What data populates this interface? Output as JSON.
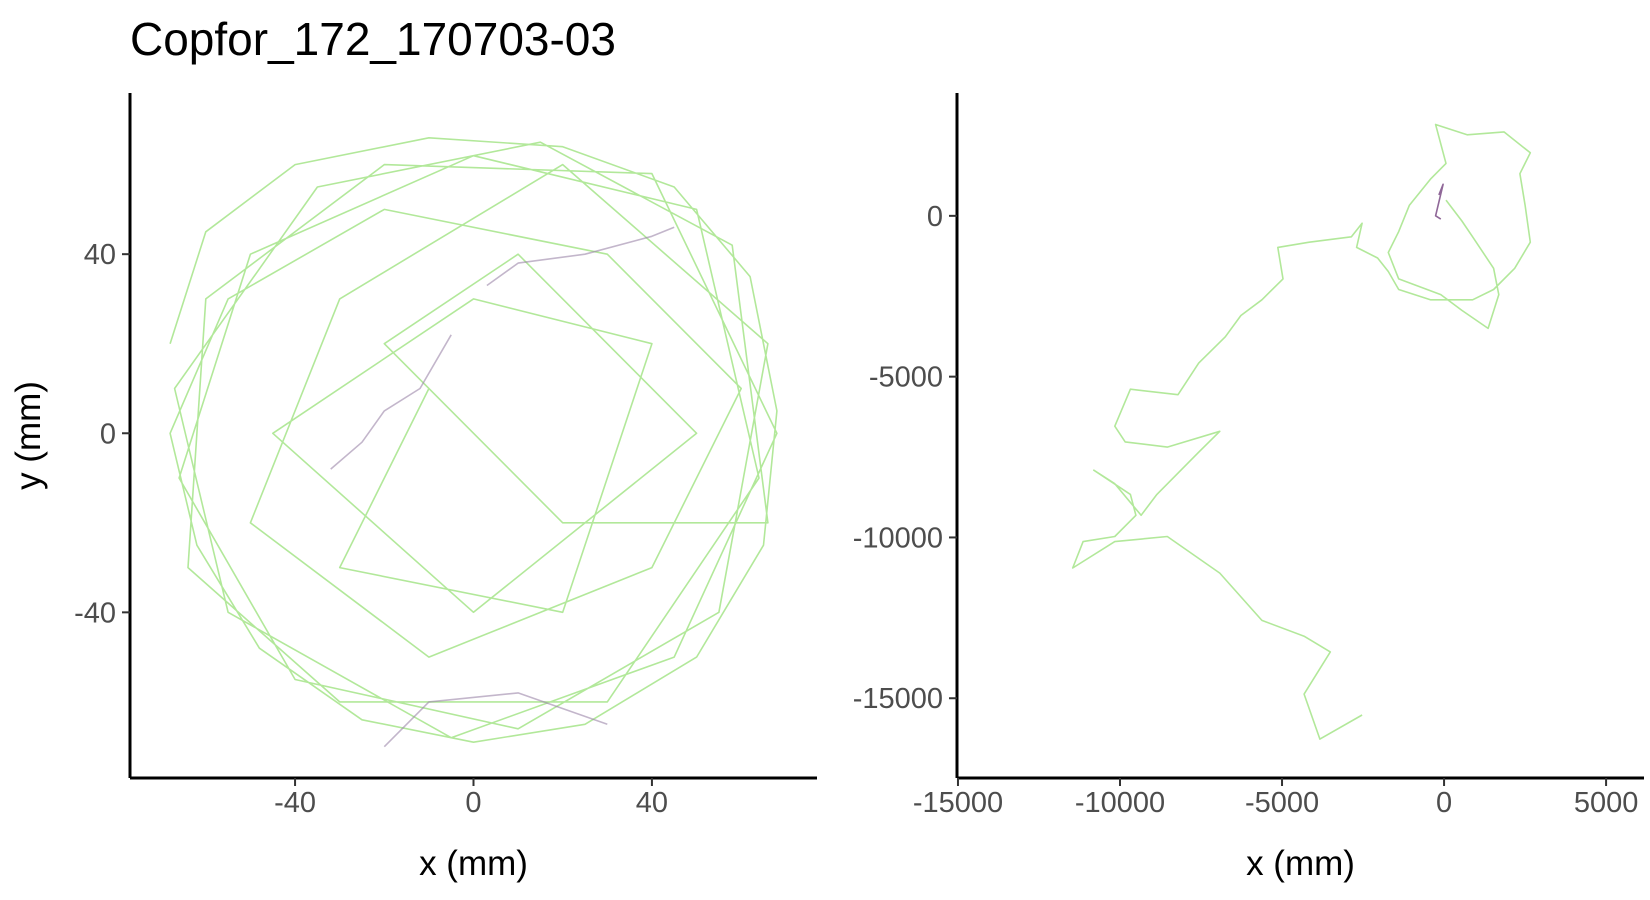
{
  "chart_data": [
    {
      "type": "line",
      "title": "Copfor_172_170703-03",
      "x_label": "x (mm)",
      "y_label": "y (mm)",
      "xlim": [
        -77,
        77
      ],
      "ylim": [
        -77,
        76
      ],
      "xticks": [
        -40,
        0,
        40
      ],
      "yticks": [
        -40,
        0,
        40
      ],
      "series": [
        {
          "color": "#7ed957",
          "x": [
            -68,
            -60,
            -40,
            -10,
            20,
            45,
            62,
            68,
            65,
            50,
            25,
            0,
            -25,
            -48,
            -62,
            -68,
            -55,
            -20,
            30,
            60,
            40,
            -10,
            -50,
            -30,
            20,
            66,
            55,
            10,
            -40,
            -66,
            -50,
            0,
            50,
            64,
            30,
            -30,
            -64,
            -60,
            -20,
            40,
            68,
            45,
            -5,
            -55,
            -67,
            -35,
            15,
            58,
            66,
            20,
            -20,
            10,
            50,
            0,
            -45,
            0,
            40,
            20,
            -30,
            -10
          ],
          "y": [
            20,
            45,
            60,
            66,
            64,
            55,
            35,
            5,
            -25,
            -50,
            -65,
            -69,
            -64,
            -48,
            -25,
            0,
            30,
            50,
            40,
            10,
            -30,
            -50,
            -20,
            30,
            60,
            20,
            -40,
            -66,
            -55,
            -10,
            40,
            62,
            50,
            -10,
            -60,
            -60,
            -30,
            30,
            60,
            58,
            0,
            -50,
            -68,
            -40,
            10,
            55,
            65,
            42,
            -20,
            -20,
            20,
            40,
            0,
            -40,
            0,
            30,
            20,
            -40,
            -30,
            10
          ]
        },
        {
          "color": "#9b86a8",
          "x": [
            3,
            10,
            25,
            40,
            45,
            null,
            -5,
            -12,
            -20,
            -25,
            -32,
            null,
            -20,
            -10,
            10,
            30
          ],
          "y": [
            33,
            38,
            40,
            44,
            46,
            null,
            22,
            10,
            5,
            -2,
            -8,
            null,
            -70,
            -60,
            -58,
            -65
          ]
        }
      ]
    },
    {
      "type": "line",
      "x_label": "x (mm)",
      "xlim": [
        -15030,
        6170
      ],
      "ylim": [
        -17480,
        3820
      ],
      "xticks": [
        -15000,
        -10000,
        -5000,
        0,
        5000
      ],
      "yticks": [
        -15000,
        -10000,
        -5000,
        0
      ],
      "series": [
        {
          "color": "#7ed957",
          "x": [
            -2530,
            -3830,
            -4320,
            -3510,
            -4320,
            -5620,
            -6920,
            -8540,
            -10160,
            -11460,
            -11140,
            -10160,
            -9510,
            -9680,
            -10810,
            -10160,
            -9350,
            -8860,
            -7570,
            -6920,
            -8540,
            -9840,
            -10160,
            -9680,
            -8210,
            -7570,
            -6750,
            -6270,
            -5620,
            -4970,
            -5130,
            -4160,
            -2860,
            -2530,
            -2700,
            -2050,
            -1720,
            -1400,
            -420,
            880,
            1530,
            2180,
            2660,
            2500,
            2340,
            2660,
            1850,
            710,
            -260,
            60,
            -420,
            -1070,
            -1400,
            -1720,
            -1400,
            -100,
            550,
            1360,
            1690,
            1530,
            880,
            550,
            60
          ],
          "y": [
            -15520,
            -16270,
            -14870,
            -13560,
            -13070,
            -12580,
            -11110,
            -9970,
            -10130,
            -10950,
            -10130,
            -9970,
            -9310,
            -8660,
            -7910,
            -8330,
            -9310,
            -8660,
            -7350,
            -6700,
            -7190,
            -7030,
            -6540,
            -5390,
            -5560,
            -4580,
            -3760,
            -3100,
            -2610,
            -1960,
            -980,
            -820,
            -650,
            -230,
            -980,
            -1310,
            -1730,
            -2290,
            -2610,
            -2610,
            -2290,
            -1630,
            -820,
            330,
            1310,
            1960,
            2610,
            2520,
            2840,
            1630,
            1140,
            330,
            -490,
            -1140,
            -1960,
            -2450,
            -2940,
            -3500,
            -2450,
            -1630,
            -650,
            -160,
            490
          ]
        },
        {
          "color": "#440154",
          "x": [
            -160,
            -30,
            -260,
            -100
          ],
          "y": [
            650,
            980,
            0,
            -100
          ]
        }
      ]
    }
  ]
}
